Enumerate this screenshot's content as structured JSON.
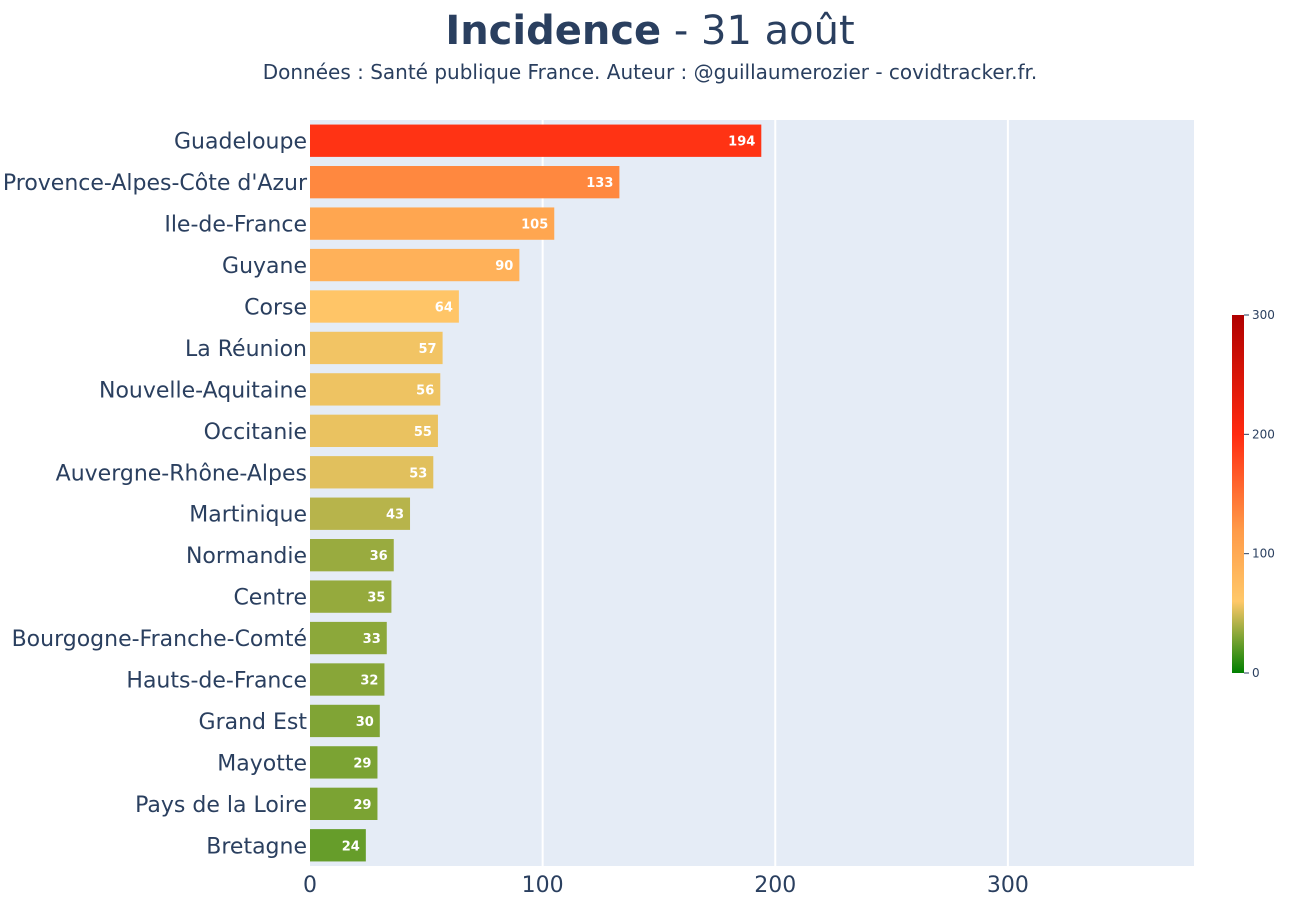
{
  "header": {
    "title_bold": "Incidence",
    "title_rest": " - 31 août",
    "subtitle": "Données : Santé publique France. Auteur : @guillaumerozier - covidtracker.fr."
  },
  "chart_data": {
    "type": "bar",
    "orientation": "horizontal",
    "categories": [
      "Guadeloupe",
      "Provence-Alpes-Côte d'Azur",
      "Ile-de-France",
      "Guyane",
      "Corse",
      "La Réunion",
      "Nouvelle-Aquitaine",
      "Occitanie",
      "Auvergne-Rhône-Alpes",
      "Martinique",
      "Normandie",
      "Centre",
      "Bourgogne-Franche-Comté",
      "Hauts-de-France",
      "Grand Est",
      "Mayotte",
      "Pays de la Loire",
      "Bretagne"
    ],
    "values": [
      194,
      133,
      105,
      90,
      64,
      57,
      56,
      55,
      53,
      43,
      36,
      35,
      33,
      32,
      30,
      29,
      29,
      24
    ],
    "data_labels": [
      "194",
      "133",
      "105",
      "90",
      "64",
      "57",
      "56",
      "55",
      "53",
      "43",
      "36",
      "35",
      "33",
      "32",
      "30",
      "29",
      "29",
      "24"
    ],
    "xlim": [
      0,
      380
    ],
    "xticks": [
      0,
      100,
      200,
      300
    ],
    "xtick_labels": [
      "0",
      "100",
      "200",
      "300"
    ],
    "grid": true,
    "plot_background": "#e5ecf6",
    "colorscale": {
      "range": [
        0,
        300
      ],
      "ticks": [
        0,
        100,
        200,
        300
      ],
      "tick_labels": [
        "0",
        "100",
        "200",
        "300"
      ],
      "stops": [
        [
          0,
          "#008000"
        ],
        [
          0.2,
          "#ffc869"
        ],
        [
          0.4,
          "#ff9a48"
        ],
        [
          0.667,
          "#ff2a10"
        ],
        [
          1,
          "#b00000"
        ]
      ]
    }
  }
}
